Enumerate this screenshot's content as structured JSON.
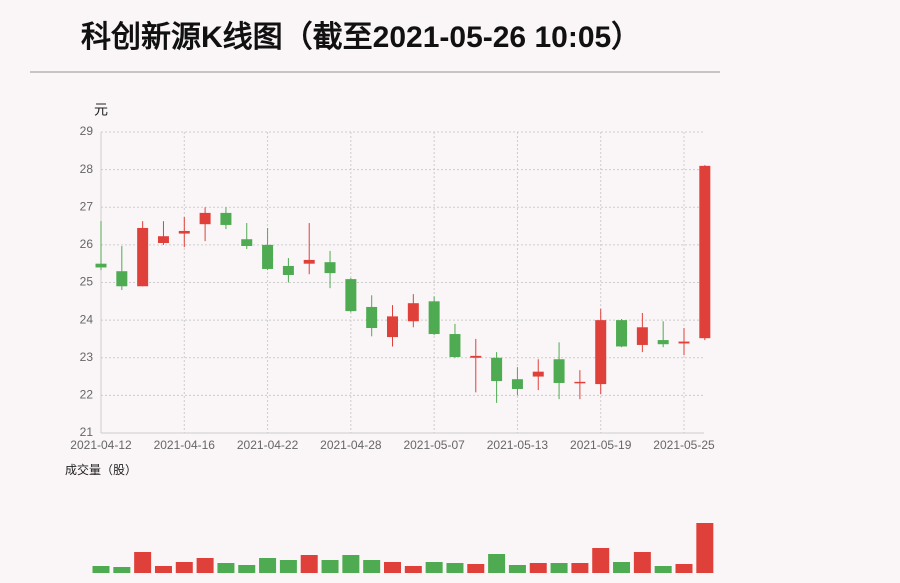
{
  "chart_data": {
    "type": "candlestick",
    "title": "科创新源K线图（截至2021-05-26 10:05）",
    "y_label": "元",
    "categories": [
      "2021-04-12",
      null,
      null,
      null,
      "2021-04-16",
      null,
      null,
      null,
      "2021-04-22",
      null,
      null,
      null,
      "2021-04-28",
      null,
      null,
      null,
      "2021-05-07",
      null,
      null,
      null,
      "2021-05-13",
      null,
      null,
      null,
      "2021-05-19",
      null,
      null,
      null,
      "2021-05-25",
      null
    ],
    "open": [
      25.5,
      25.3,
      24.9,
      26.05,
      26.3,
      26.55,
      26.85,
      26.15,
      26.0,
      25.44,
      25.5,
      25.54,
      25.09,
      24.35,
      23.55,
      23.97,
      24.5,
      23.63,
      23.0,
      23.0,
      22.43,
      22.5,
      22.96,
      22.33,
      22.3,
      24.0,
      23.34,
      23.47,
      23.38,
      23.52
    ],
    "high": [
      26.63,
      25.97,
      26.63,
      26.63,
      26.74,
      27.0,
      27.0,
      26.58,
      26.45,
      25.65,
      26.58,
      25.84,
      25.12,
      24.66,
      24.4,
      24.69,
      24.63,
      23.9,
      23.5,
      23.15,
      22.75,
      22.96,
      23.41,
      22.67,
      24.3,
      24.03,
      24.19,
      23.97,
      23.79,
      28.12
    ],
    "low": [
      25.33,
      24.8,
      24.9,
      26.0,
      25.94,
      26.1,
      26.42,
      25.89,
      25.33,
      25.0,
      25.22,
      24.85,
      24.21,
      23.57,
      23.3,
      23.81,
      23.6,
      22.99,
      22.08,
      21.8,
      22.0,
      22.14,
      21.9,
      21.9,
      22.03,
      23.28,
      23.15,
      23.28,
      23.07,
      23.47
    ],
    "close": [
      25.4,
      24.9,
      26.45,
      26.23,
      26.37,
      26.85,
      26.53,
      25.97,
      25.36,
      25.2,
      25.6,
      25.25,
      24.24,
      23.79,
      24.1,
      24.45,
      23.63,
      23.02,
      23.05,
      22.38,
      22.17,
      22.63,
      22.33,
      22.36,
      24.0,
      23.3,
      23.81,
      23.36,
      23.43,
      28.1
    ],
    "ylim": [
      21,
      29
    ],
    "yticks": [
      21,
      22,
      23,
      24,
      25,
      26,
      27,
      28,
      29
    ],
    "grid": true,
    "up_color": "#e0403a",
    "down_color": "#4eab52",
    "volume": {
      "label": "成交量（股）",
      "values": [
        7,
        6,
        21,
        7,
        11,
        15,
        10,
        8,
        15,
        13,
        18,
        13,
        18,
        13,
        11,
        7,
        11,
        10,
        9,
        19,
        8,
        10,
        10,
        10,
        25,
        11,
        21,
        7,
        9,
        50
      ]
    }
  }
}
